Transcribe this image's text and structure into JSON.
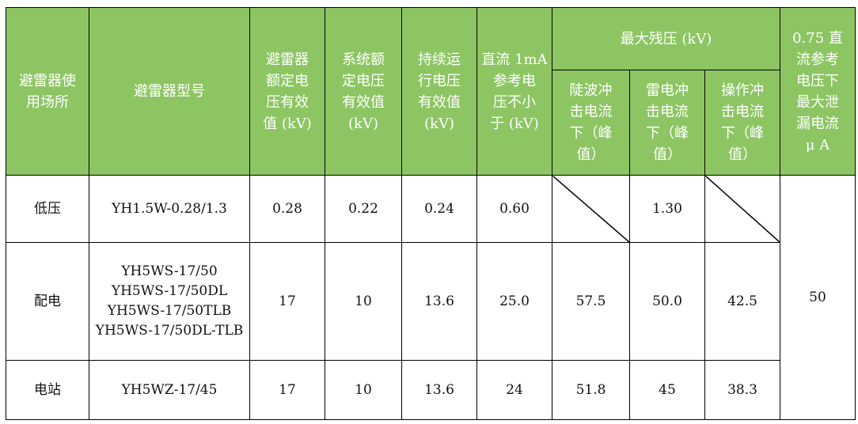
{
  "headers": {
    "location": "避雷器使\n用场所",
    "model": "避雷器型号",
    "rated_voltage": "避雷器\n额定电\n压有效\n值 (kV)",
    "system_voltage": "系统额\n定电压\n有效值\n(kV)",
    "continuous_voltage": "持续运\n行电压\n有效值\n(kV)",
    "dc_ref_voltage": "直流 1mA\n参考电\n压不小\n于 (kV)",
    "max_residual": "最大残压 (kV)",
    "steep": "陡波冲\n击电流\n下（峰\n值）",
    "lightning": "雷电冲\n击电流\n下（峰\n值）",
    "switching": "操作冲\n击电流\n下（峰\n值）",
    "leakage": "0.75 直\n流参考\n电压下\n最大泄\n漏电流\nμ A"
  },
  "rows": [
    {
      "location": "低压",
      "model": "YH1.5W-0.28/1.3",
      "rated": "0.28",
      "system": "0.22",
      "continuous": "0.24",
      "dc_ref": "0.60",
      "steep": "",
      "lightning": "1.30",
      "switching": ""
    },
    {
      "location": "配电",
      "model": "YH5WS-17/50\nYH5WS-17/50DL\nYH5WS-17/50TLB\nYH5WS-17/50DL-TLB",
      "rated": "17",
      "system": "10",
      "continuous": "13.6",
      "dc_ref": "25.0",
      "steep": "57.5",
      "lightning": "50.0",
      "switching": "42.5"
    },
    {
      "location": "电站",
      "model": "YH5WZ-17/45",
      "rated": "17",
      "system": "10",
      "continuous": "13.6",
      "dc_ref": "24",
      "steep": "51.8",
      "lightning": "45",
      "switching": "38.3"
    }
  ],
  "leakage_value": "50",
  "colors": {
    "header_bg": "#8dc563",
    "header_text": "#ffffff"
  }
}
